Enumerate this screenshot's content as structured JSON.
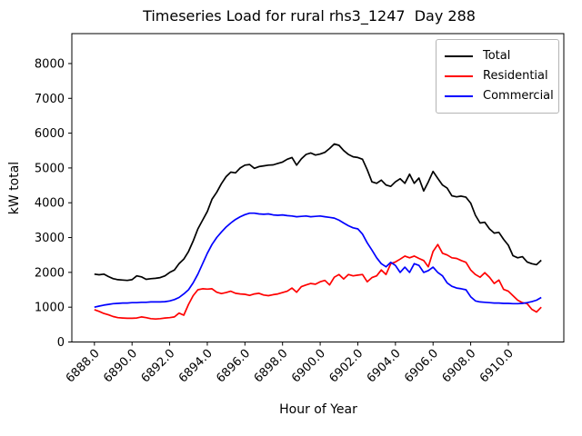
{
  "title": "Timeseries Load for rural rhs3_1247  Day 288",
  "legend": {
    "items": [
      {
        "label": "Total",
        "color": "#000000"
      },
      {
        "label": "Residential",
        "color": "#ff0000"
      },
      {
        "label": "Commercial",
        "color": "#0000ff"
      }
    ]
  },
  "chart_data": {
    "type": "line",
    "title": "Timeseries Load for rural rhs3_1247  Day 288",
    "xlabel": "Hour of Year",
    "ylabel": "kW total",
    "xlim": [
      6886.8,
      6912.95
    ],
    "ylim": [
      0,
      8860
    ],
    "grid": false,
    "legend_position": "upper right",
    "xticks": [
      6888,
      6890,
      6892,
      6894,
      6896,
      6898,
      6900,
      6902,
      6904,
      6906,
      6908,
      6910
    ],
    "xtick_labels": [
      "6888.0",
      "6890.0",
      "6892.0",
      "6894.0",
      "6896.0",
      "6898.0",
      "6900.0",
      "6902.0",
      "6904.0",
      "6906.0",
      "6908.0",
      "6910.0"
    ],
    "yticks": [
      0,
      1000,
      2000,
      3000,
      4000,
      5000,
      6000,
      7000,
      8000
    ],
    "ytick_labels": [
      "0",
      "1000",
      "2000",
      "3000",
      "4000",
      "5000",
      "6000",
      "7000",
      "8000"
    ],
    "x_start": 6888.0,
    "x_step": 0.25,
    "series": [
      {
        "name": "Total",
        "color": "#000000",
        "values": [
          1950,
          1930,
          1950,
          1880,
          1820,
          1790,
          1780,
          1770,
          1790,
          1900,
          1870,
          1800,
          1820,
          1830,
          1850,
          1900,
          2000,
          2070,
          2250,
          2380,
          2600,
          2900,
          3250,
          3500,
          3750,
          4100,
          4300,
          4550,
          4750,
          4880,
          4860,
          5000,
          5080,
          5100,
          4990,
          5040,
          5060,
          5080,
          5090,
          5130,
          5170,
          5250,
          5300,
          5080,
          5260,
          5390,
          5430,
          5370,
          5400,
          5450,
          5560,
          5690,
          5650,
          5500,
          5390,
          5320,
          5300,
          5250,
          4950,
          4600,
          4560,
          4650,
          4510,
          4470,
          4600,
          4690,
          4560,
          4820,
          4560,
          4710,
          4340,
          4600,
          4900,
          4700,
          4510,
          4420,
          4200,
          4170,
          4190,
          4160,
          3990,
          3640,
          3420,
          3440,
          3250,
          3130,
          3150,
          2950,
          2780,
          2480,
          2420,
          2450,
          2300,
          2250,
          2220,
          2350
        ]
      },
      {
        "name": "Residential",
        "color": "#ff0000",
        "values": [
          930,
          880,
          820,
          780,
          730,
          700,
          690,
          680,
          680,
          690,
          720,
          700,
          670,
          660,
          670,
          690,
          700,
          720,
          830,
          770,
          1080,
          1330,
          1500,
          1530,
          1520,
          1530,
          1430,
          1390,
          1420,
          1460,
          1400,
          1380,
          1370,
          1340,
          1380,
          1400,
          1350,
          1330,
          1360,
          1380,
          1420,
          1460,
          1550,
          1430,
          1590,
          1640,
          1680,
          1660,
          1730,
          1770,
          1640,
          1860,
          1940,
          1810,
          1940,
          1900,
          1920,
          1940,
          1730,
          1850,
          1900,
          2070,
          1940,
          2250,
          2300,
          2380,
          2470,
          2420,
          2470,
          2400,
          2340,
          2160,
          2600,
          2800,
          2550,
          2500,
          2420,
          2400,
          2340,
          2290,
          2070,
          1940,
          1860,
          1990,
          1860,
          1680,
          1780,
          1510,
          1460,
          1330,
          1200,
          1130,
          1100,
          940,
          860,
          1000
        ]
      },
      {
        "name": "Commercial",
        "color": "#0000ff",
        "values": [
          1000,
          1030,
          1060,
          1080,
          1100,
          1110,
          1120,
          1120,
          1130,
          1130,
          1140,
          1140,
          1150,
          1150,
          1150,
          1160,
          1180,
          1220,
          1280,
          1380,
          1500,
          1700,
          1950,
          2250,
          2550,
          2800,
          3000,
          3160,
          3300,
          3420,
          3520,
          3600,
          3660,
          3700,
          3700,
          3680,
          3670,
          3680,
          3650,
          3640,
          3650,
          3630,
          3620,
          3600,
          3610,
          3620,
          3600,
          3610,
          3620,
          3600,
          3580,
          3560,
          3500,
          3420,
          3340,
          3280,
          3250,
          3100,
          2850,
          2640,
          2420,
          2250,
          2160,
          2290,
          2200,
          2000,
          2150,
          2000,
          2250,
          2200,
          2000,
          2050,
          2150,
          2000,
          1900,
          1700,
          1600,
          1550,
          1530,
          1500,
          1300,
          1180,
          1150,
          1140,
          1130,
          1120,
          1120,
          1110,
          1110,
          1100,
          1100,
          1110,
          1130,
          1160,
          1200,
          1280
        ]
      }
    ]
  }
}
